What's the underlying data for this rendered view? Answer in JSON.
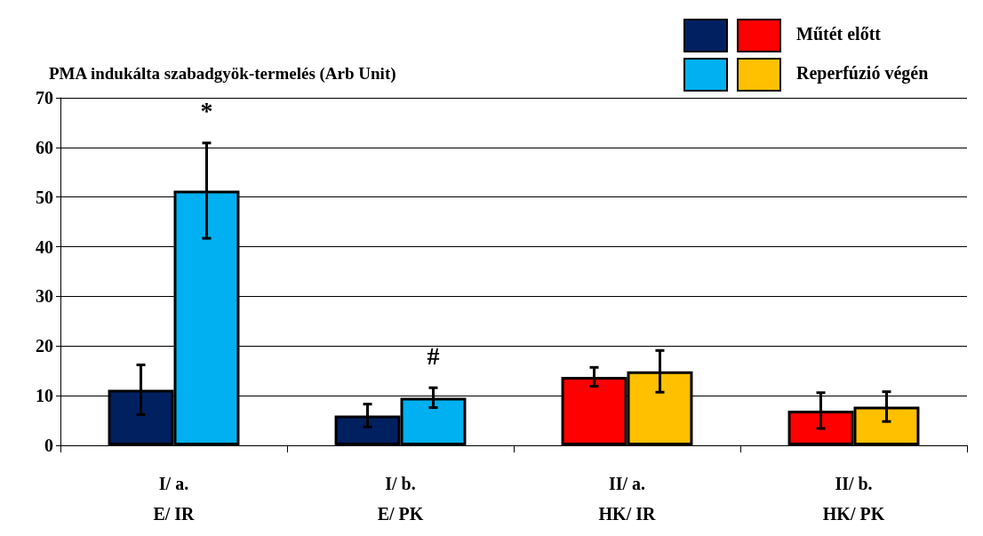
{
  "chart_data": {
    "type": "bar",
    "ylabel": "PMA indukálta szabadgyök-termelés (Arb Unit)",
    "categories": [
      "I/ a.\nE/ IR",
      "I/ b.\nE/ PK",
      "II/ a.\nHK/ IR",
      "II/ b.\nHK/ PK"
    ],
    "series": [
      {
        "name": "Műtét előtt",
        "colors": [
          "#002060",
          "#002060",
          "#ff0000",
          "#ff0000"
        ],
        "values": [
          11.2,
          6.0,
          13.8,
          7.0
        ],
        "errors": [
          5.0,
          2.3,
          1.9,
          3.6
        ]
      },
      {
        "name": "Reperfúzió végén",
        "colors": [
          "#00b0f0",
          "#00b0f0",
          "#ffc000",
          "#ffc000"
        ],
        "values": [
          51.3,
          9.6,
          14.9,
          7.8
        ],
        "errors": [
          9.6,
          2.0,
          4.2,
          3.0
        ]
      }
    ],
    "annotations": [
      "*",
      "#"
    ],
    "ylim": [
      0,
      70
    ],
    "yticks": [
      0,
      10,
      20,
      30,
      40,
      50,
      60,
      70
    ],
    "grid": "y",
    "legend": "top right"
  }
}
